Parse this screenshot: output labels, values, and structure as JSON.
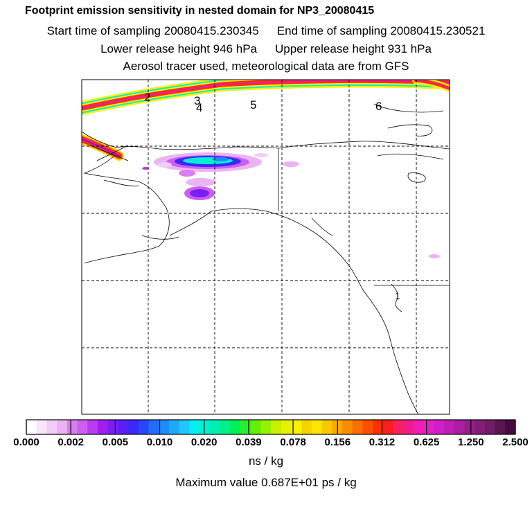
{
  "chart_data": {
    "type": "heatmap",
    "title": "Footprint emission sensitivity in nested domain for NP3_20080415",
    "start_time_label": "Start time of sampling",
    "start_time": "20080415.230345",
    "end_time_label": "End time of sampling",
    "end_time": "20080415.230521",
    "lower_release_label": "Lower release height",
    "lower_release_value": "946 hPa",
    "upper_release_label": "Upper release height",
    "upper_release_value": "931 hPa",
    "tracer_note": "Aerosol tracer used, meteorological data are from GFS",
    "track_labels": [
      "2",
      "3",
      "4",
      "5",
      "6"
    ],
    "receptor_marker": "1",
    "colorbar": {
      "tick_labels": [
        "0.000",
        "0.002",
        "0.005",
        "0.010",
        "0.020",
        "0.039",
        "0.078",
        "0.156",
        "0.312",
        "0.625",
        "1.250",
        "2.500"
      ],
      "colors": [
        "#ffffff",
        "#f8e6fa",
        "#f2cdf6",
        "#ebb3f2",
        "#d87ef0",
        "#cb5ff0",
        "#bb3cf0",
        "#a21ef0",
        "#7a1ef4",
        "#5a1ef8",
        "#3c28fa",
        "#2846fa",
        "#1e6efa",
        "#1e8cfa",
        "#1eaafa",
        "#1ec8fa",
        "#00f0f0",
        "#00f0d2",
        "#00f0b4",
        "#00f08c",
        "#00f05a",
        "#28f028",
        "#64f000",
        "#96f000",
        "#c8f000",
        "#e6f000",
        "#faf000",
        "#fad200",
        "#ffe600",
        "#fac800",
        "#faaa00",
        "#fa8c00",
        "#fa6e00",
        "#fa5000",
        "#fa3200",
        "#fa1e1e",
        "#fa1e64",
        "#f01e8c",
        "#f01eb4",
        "#e61ec8",
        "#d21ec8",
        "#be1eb4",
        "#aa1ea0",
        "#961e8c",
        "#821e78",
        "#6e1e64",
        "#5a1450",
        "#460a3c"
      ],
      "units": "ns / kg"
    },
    "max_value_label": "Maximum value",
    "max_value": "0.687E+01 ps / kg"
  }
}
